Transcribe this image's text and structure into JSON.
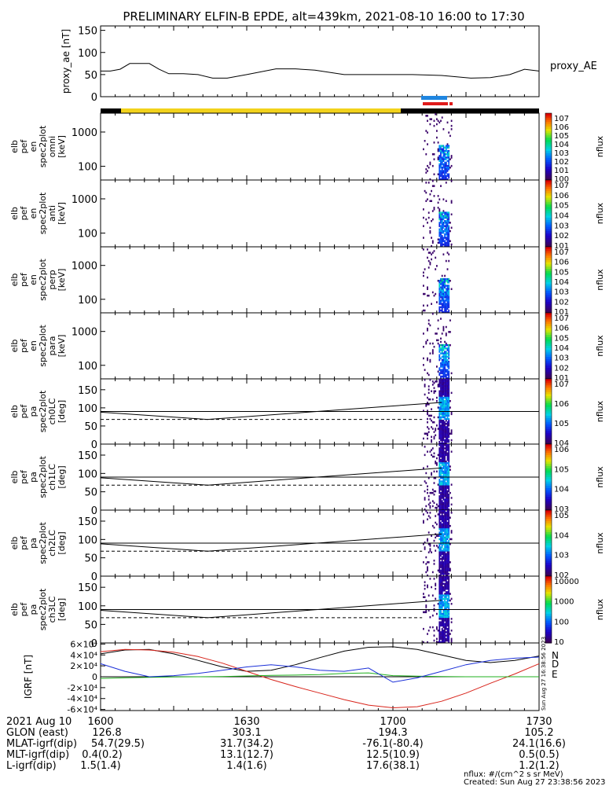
{
  "title": "PRELIMINARY ELFIN-B EPDE, alt=439km, 2021-08-10 16:00 to 17:30",
  "footer": {
    "units": "nflux: #/(cm^2 s sr MeV)",
    "created": "Created: Sun Aug 27 23:38:56 2023",
    "side_stamp": "Sun Aug 27 16:38:56 2023"
  },
  "ephemeris": {
    "row_labels": [
      "2021 Aug 10",
      "GLON (east)",
      "MLAT-igrf(dip)",
      "MLT-igrf(dip)",
      "L-igrf(dip)"
    ],
    "times": [
      "1600",
      "1630",
      "1700",
      "1730"
    ],
    "glon": [
      "126.8",
      "303.1",
      "194.3",
      "105.2"
    ],
    "mlat": [
      "54.7(29.5)",
      "31.7(34.2)",
      "-76.1(-80.4)",
      "24.1(16.6)"
    ],
    "mlt": [
      "0.4(0.2)",
      "13.1(12.7)",
      "12.5(10.9)",
      "0.5(0.5)"
    ],
    "lval": [
      "1.5(1.4)",
      "1.4(1.6)",
      "17.6(38.1)",
      "1.2(1.2)"
    ]
  },
  "colors": {
    "yellow_bar": "#f2d21c",
    "blue_bar": "#1f86e0",
    "red_bar": "#e01a1a",
    "igrf_n": "#000000",
    "igrf_d": "#d8231a",
    "igrf_e": "#21b21f",
    "igrf_blue": "#1a2fd8"
  },
  "chart_data": [
    {
      "type": "line",
      "name": "proxy_ae",
      "ylabel": "proxy_ae [nT]",
      "legend": "proxy_AE",
      "yticks": [
        "0",
        "50",
        "100",
        "150"
      ],
      "ylim": [
        0,
        160
      ],
      "x_minutes": [
        0,
        2,
        4,
        6,
        7,
        10,
        12,
        14,
        17,
        20,
        23,
        26,
        30,
        36,
        40,
        44,
        50,
        56,
        60,
        64,
        70,
        76,
        80,
        84,
        87,
        90
      ],
      "values": [
        58,
        58,
        62,
        75,
        75,
        75,
        62,
        52,
        52,
        50,
        42,
        42,
        50,
        63,
        63,
        60,
        50,
        50,
        50,
        50,
        48,
        42,
        43,
        50,
        62,
        58
      ]
    },
    {
      "type": "heatmap",
      "name": "omni",
      "ylabel": "elb pef en spec2plot omni [keV]",
      "yticks": [
        "100",
        "1000"
      ],
      "colorbar_label": "nflux",
      "colorbar_ticks": [
        "10^7",
        "10^6",
        "10^5",
        "10^4",
        "10^3",
        "10^2",
        "10^1",
        "10^0"
      ]
    },
    {
      "type": "heatmap",
      "name": "anti",
      "ylabel": "elb pef en spec2plot anti [keV]",
      "yticks": [
        "100",
        "1000"
      ],
      "colorbar_label": "nflux",
      "colorbar_ticks": [
        "10^7",
        "10^6",
        "10^5",
        "10^4",
        "10^3",
        "10^2",
        "10^1"
      ]
    },
    {
      "type": "heatmap",
      "name": "perp",
      "ylabel": "elb pef en spec2plot perp [keV]",
      "yticks": [
        "100",
        "1000"
      ],
      "colorbar_label": "nflux",
      "colorbar_ticks": [
        "10^7",
        "10^6",
        "10^5",
        "10^4",
        "10^3",
        "10^2",
        "10^1"
      ]
    },
    {
      "type": "heatmap",
      "name": "para",
      "ylabel": "elb pef en spec2plot para [keV]",
      "yticks": [
        "100",
        "1000"
      ],
      "colorbar_label": "nflux",
      "colorbar_ticks": [
        "10^7",
        "10^6",
        "10^5",
        "10^4",
        "10^3",
        "10^2",
        "10^1"
      ]
    },
    {
      "type": "heatmap",
      "name": "ch0LC",
      "ylabel": "elb pef pa spec2plot ch0LC [deg]",
      "yticks": [
        "0",
        "50",
        "100",
        "150"
      ],
      "colorbar_label": "nflux",
      "colorbar_ticks": [
        "10^7",
        "10^6",
        "10^5",
        "10^4"
      ]
    },
    {
      "type": "heatmap",
      "name": "ch1LC",
      "ylabel": "elb pef pa spec2plot ch1LC [deg]",
      "yticks": [
        "0",
        "50",
        "100",
        "150"
      ],
      "colorbar_label": "nflux",
      "colorbar_ticks": [
        "10^6",
        "10^5",
        "10^4",
        "10^3"
      ]
    },
    {
      "type": "heatmap",
      "name": "ch2LC",
      "ylabel": "elb pef pa spec2plot ch2LC [deg]",
      "yticks": [
        "0",
        "50",
        "100",
        "150"
      ],
      "colorbar_label": "nflux",
      "colorbar_ticks": [
        "10^5",
        "10^4",
        "10^3",
        "10^2"
      ]
    },
    {
      "type": "heatmap",
      "name": "ch3LC",
      "ylabel": "elb pef pa spec2plot ch3LC [deg]",
      "yticks": [
        "0",
        "50",
        "100",
        "150"
      ],
      "colorbar_label": "nflux",
      "colorbar_ticks": [
        "10000",
        "1000",
        "100",
        "10"
      ]
    },
    {
      "type": "line",
      "name": "IGRF",
      "ylabel": "IGRF [nT]",
      "yticks": [
        "-6x10^4",
        "-4x10^4",
        "-2x10^4",
        "0",
        "2x10^4",
        "4x10^4",
        "6x10^4"
      ],
      "ylim": [
        -62000,
        62000
      ],
      "legend": [
        "N",
        "D",
        "E"
      ],
      "x_minutes": [
        0,
        5,
        10,
        15,
        20,
        25,
        30,
        35,
        40,
        45,
        50,
        55,
        60,
        65,
        70,
        75,
        80,
        85,
        90
      ],
      "series": [
        {
          "name": "N",
          "values": [
            42000,
            49000,
            50000,
            42000,
            30000,
            18000,
            10000,
            12000,
            22000,
            35000,
            47000,
            54000,
            55000,
            50000,
            40000,
            30000,
            26000,
            30000,
            38000
          ]
        },
        {
          "name": "D",
          "values": [
            46000,
            50000,
            49000,
            45000,
            37000,
            25000,
            10000,
            -5000,
            -18000,
            -30000,
            -42000,
            -52000,
            -57000,
            -55000,
            -45000,
            -30000,
            -12000,
            5000,
            24000
          ]
        },
        {
          "name": "E",
          "values": [
            -3000,
            -2000,
            -1000,
            -500,
            0,
            500,
            1500,
            2500,
            3000,
            4000,
            6000,
            7000,
            2000,
            1000,
            500,
            0,
            0,
            0,
            0
          ]
        },
        {
          "name": "",
          "values": [
            24000,
            10000,
            0,
            2000,
            6000,
            12000,
            18000,
            22000,
            18000,
            12000,
            10000,
            16000,
            -10000,
            -2000,
            10000,
            22000,
            30000,
            34000,
            36000
          ]
        }
      ]
    }
  ]
}
